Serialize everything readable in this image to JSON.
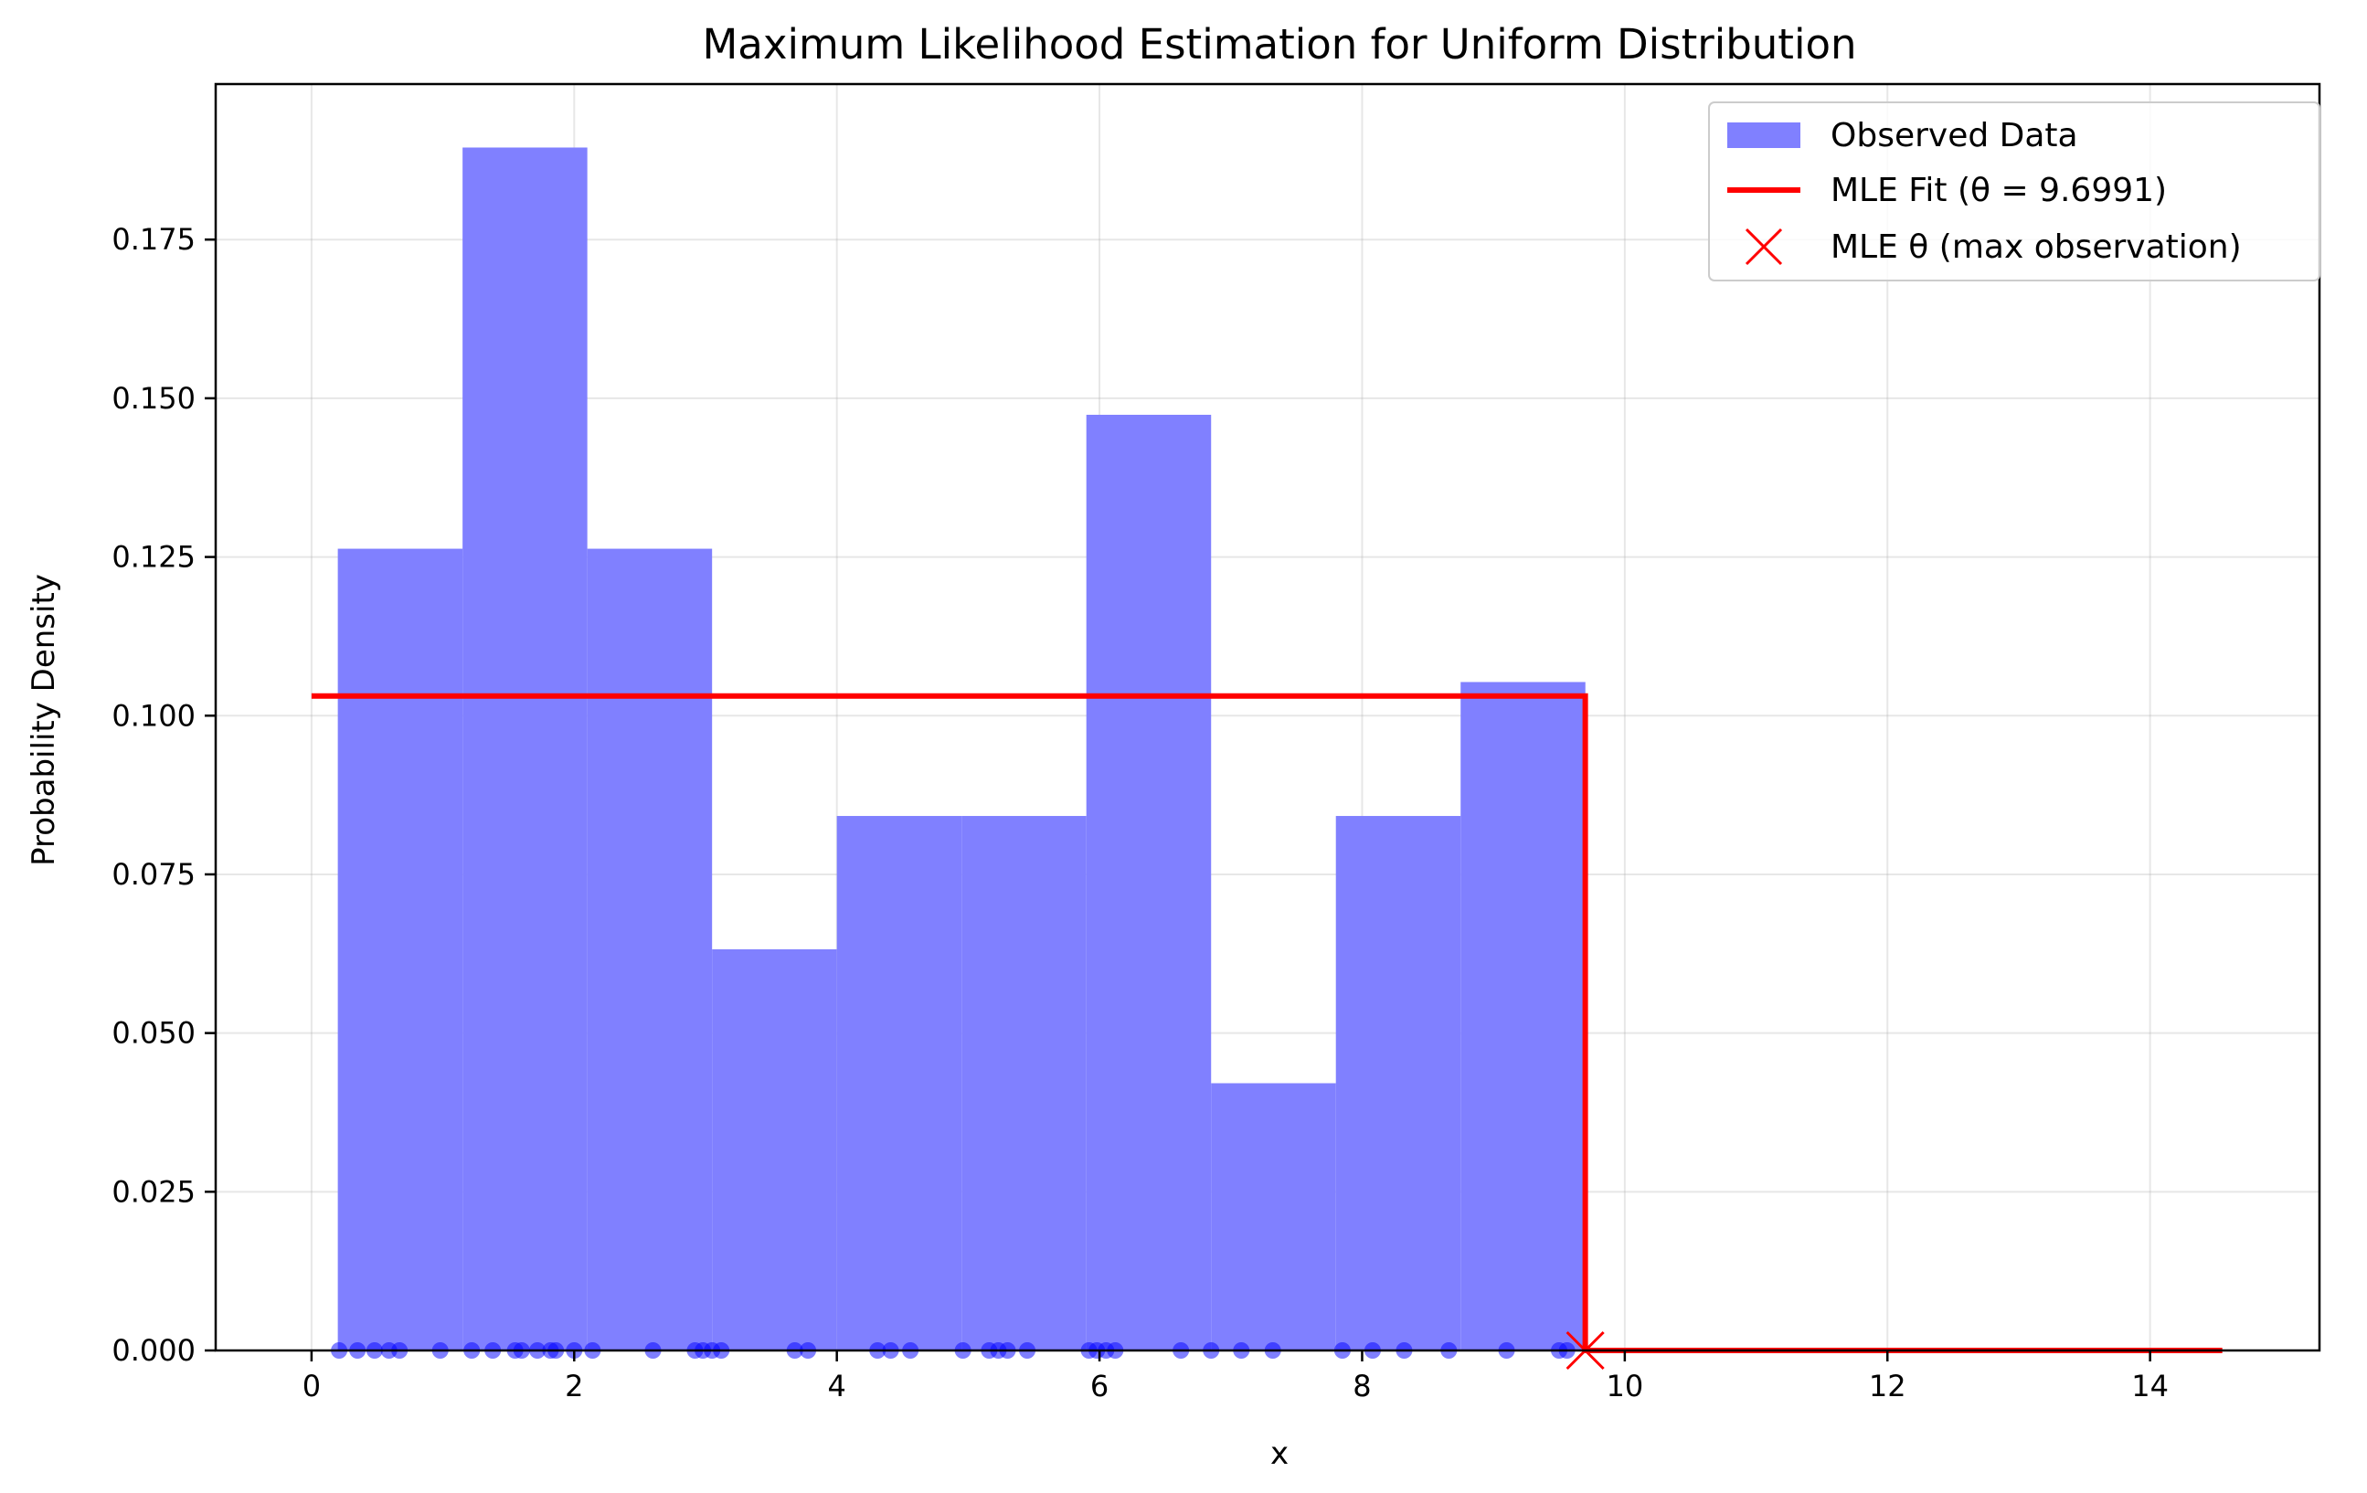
{
  "chart_data": {
    "type": "histogram",
    "title": "Maximum Likelihood Estimation for Uniform Distribution",
    "xlabel": "x",
    "ylabel": "Probability Density",
    "xlim": [
      -0.73,
      15.29
    ],
    "ylim": [
      0,
      0.1995
    ],
    "xticks": [
      0,
      2,
      4,
      6,
      8,
      10,
      12,
      14
    ],
    "xtick_labels": [
      "0",
      "2",
      "4",
      "6",
      "8",
      "10",
      "12",
      "14"
    ],
    "yticks": [
      0,
      0.025,
      0.05,
      0.075,
      0.1,
      0.125,
      0.15,
      0.175
    ],
    "ytick_labels": [
      "0.000",
      "0.025",
      "0.050",
      "0.075",
      "0.100",
      "0.125",
      "0.150",
      "0.175"
    ],
    "grid": true,
    "legend_position": "top-right",
    "histogram": {
      "name": "Observed Data",
      "color": "#8080ff",
      "bin_edges": [
        0.2,
        1.15,
        2.1,
        3.05,
        4.0,
        4.95,
        5.9,
        6.85,
        7.8,
        8.75,
        9.7
      ],
      "densities": [
        0.1263,
        0.1895,
        0.1263,
        0.0632,
        0.0842,
        0.0842,
        0.1474,
        0.0421,
        0.0842,
        0.1053
      ]
    },
    "mle_fit": {
      "name": "MLE Fit (θ = 9.6991)",
      "color": "#ff0000",
      "theta": 9.6991,
      "density": 0.1031,
      "x_start": 0,
      "x_end": 14.55
    },
    "mle_marker": {
      "name": "MLE θ (max observation)",
      "color": "#ff0000",
      "x": 9.6991,
      "y": 0
    },
    "observations": {
      "color": "#0000ff",
      "x": [
        0.21,
        0.35,
        0.48,
        0.59,
        0.67,
        0.98,
        1.22,
        1.38,
        1.55,
        1.6,
        1.72,
        1.82,
        1.86,
        2.0,
        2.14,
        2.6,
        2.92,
        2.98,
        3.05,
        3.12,
        3.68,
        3.78,
        4.31,
        4.41,
        4.56,
        4.96,
        5.16,
        5.23,
        5.3,
        5.45,
        5.92,
        5.98,
        6.05,
        6.12,
        6.62,
        6.85,
        7.08,
        7.32,
        7.85,
        8.08,
        8.32,
        8.66,
        9.1,
        9.5,
        9.56
      ]
    }
  }
}
